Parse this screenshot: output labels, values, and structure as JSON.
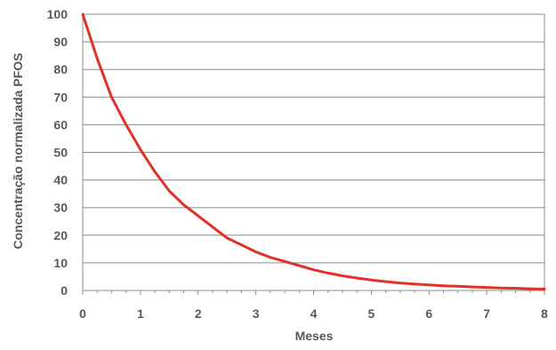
{
  "chart_data": {
    "type": "line",
    "title": "",
    "xlabel": "Meses",
    "ylabel": "Concentração normalizada PFOS",
    "xlim": [
      0,
      8
    ],
    "ylim": [
      0,
      100
    ],
    "x_ticks": [
      0,
      1,
      2,
      3,
      4,
      5,
      6,
      7,
      8
    ],
    "x_tick_labels": [
      "0",
      "1",
      "2",
      "3",
      "4",
      "5",
      "6",
      "7",
      "8"
    ],
    "y_ticks": [
      0,
      10,
      20,
      30,
      40,
      50,
      60,
      70,
      80,
      90,
      100
    ],
    "y_tick_labels": [
      "0",
      "10",
      "20",
      "30",
      "40",
      "50",
      "60",
      "70",
      "80",
      "90",
      "100"
    ],
    "grid": "horizontal",
    "legend": "none",
    "series": [
      {
        "color": "#e03228",
        "x": [
          0,
          0.25,
          0.5,
          0.75,
          1,
          1.25,
          1.5,
          1.75,
          2,
          2.25,
          2.5,
          2.75,
          3,
          3.25,
          3.5,
          3.75,
          4,
          4.25,
          4.5,
          4.75,
          5,
          5.25,
          5.5,
          5.75,
          6,
          6.25,
          6.5,
          6.75,
          7,
          7.25,
          7.5,
          7.75,
          8
        ],
        "y": [
          100,
          84,
          70,
          60,
          51,
          43,
          36,
          31,
          27,
          23,
          19,
          16.5,
          14,
          12,
          10.5,
          9,
          7.5,
          6.3,
          5.3,
          4.5,
          3.8,
          3.2,
          2.7,
          2.3,
          2,
          1.7,
          1.5,
          1.3,
          1.1,
          0.9,
          0.8,
          0.6,
          0.5
        ]
      }
    ]
  }
}
